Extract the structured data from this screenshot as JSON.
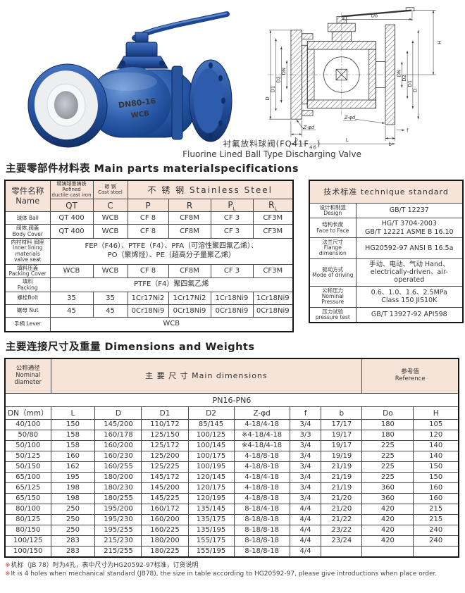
{
  "figure": {
    "caption_cn_main": "衬氟放料球阀(FQ41F",
    "caption_cn_sub": "46",
    "caption_cn_close": ")",
    "caption_en": "Fluorine Lined Ball Type Discharging Valve",
    "photo_mark_line1": "DN80-16",
    "photo_mark_line2": "WCB"
  },
  "drawing": {
    "dims": {
      "do": "Do",
      "h": "H",
      "d": "D",
      "d1": "D1",
      "d2": "D2",
      "dn": "DN",
      "z_phi_d": "Z-φd",
      "b": "b",
      "f": "f",
      "l": "L"
    }
  },
  "materials": {
    "heading": "主要零部件材料表 Main parts materialspecifications",
    "name_header": [
      "零件名称",
      "Name"
    ],
    "qt_header": [
      "精铸球墨铸铁",
      "Refined",
      "ductile cast iron"
    ],
    "c_header": [
      "碳  钢",
      "Cast steel"
    ],
    "ss_header": "不 锈 钢 Stainless Steel",
    "codes": [
      {
        "t": "QT"
      },
      {
        "t": "C"
      },
      {
        "t": "P"
      },
      {
        "t": "R"
      },
      {
        "t": "P",
        "sub": "L"
      },
      {
        "t": "R",
        "sub": "L"
      }
    ],
    "rows": [
      {
        "name": [
          "球体 Ball"
        ],
        "values": [
          "QT 400",
          "WCB",
          "CF 8",
          "CF8M",
          "CF 3",
          "CF3M"
        ]
      },
      {
        "name": [
          "阀体,阀盖",
          "Body Cover"
        ],
        "values": [
          "QT 400",
          "WCB",
          "CF 8",
          "CF8M",
          "CF 3",
          "CF3M"
        ]
      },
      {
        "name": [
          "内衬材料 阀座",
          "inner lining",
          "materials",
          "valve seat"
        ],
        "span_value": [
          "FEP（F46）、PTFE（F4）、PFA（可溶性聚四氟乙烯）、",
          "PO（聚烯烃）、PE（超高分子量聚乙烯）"
        ]
      },
      {
        "name": [
          "填料压盖",
          "Packing Cover"
        ],
        "values": [
          "WCB",
          "WCB",
          "CF 8",
          "CF8M",
          "CF 3",
          "CF3M"
        ]
      },
      {
        "name": [
          "填料",
          "Packing"
        ],
        "span_value": [
          "PTFE（F4）聚四氟乙烯"
        ]
      },
      {
        "name": [
          "螺栓Bolt"
        ],
        "values": [
          "35",
          "35",
          "1Cr17Ni2",
          "1Cr17Ni2",
          "1Cr18Ni9",
          "1Cr18Ni9"
        ]
      },
      {
        "name": [
          "螺母 Nut"
        ],
        "values": [
          "45",
          "45",
          "0Cr18Ni9",
          "0Cr18Ni9",
          "0Cr18Ni9",
          "0Cr18Ni9"
        ]
      },
      {
        "name": [
          "手柄 Lever"
        ],
        "span_value": [
          "WCB"
        ]
      }
    ]
  },
  "standards": {
    "title": "技术标准 technique standard",
    "rows": [
      {
        "label": [
          "设计和制造",
          "Design"
        ],
        "value": [
          "GB/T 12237"
        ]
      },
      {
        "label": [
          "结构长度",
          "Face to Face"
        ],
        "value": [
          "HG/T 3704-2003",
          "GB/T 12221  ASME B 16.10"
        ]
      },
      {
        "label": [
          "法兰尺寸",
          "Flange",
          "dimension"
        ],
        "value": [
          "HG20592-97 ANSI B 16.5a"
        ]
      },
      {
        "label": [
          "驱动方式",
          "Mode of driving"
        ],
        "value": [
          "手动、电动、气动 Hand、",
          "electrically-driven、air-operated"
        ]
      },
      {
        "label": [
          "公称压力",
          "Nominal",
          "Pressure"
        ],
        "value": [
          "0.6、1.0、1.6、2.5MPa",
          "Class 150 JIS10K"
        ]
      },
      {
        "label": [
          "压力试验",
          "pressure test"
        ],
        "value": [
          "GB/T 13927-92  API598"
        ]
      }
    ]
  },
  "dimensions": {
    "heading": "主要连接尺寸及重量 Dimensions and Weights",
    "nominal_header": [
      "公称通径",
      "Nominal",
      "diameter"
    ],
    "main_header": "主 要 尺 寸 Main dimensions",
    "reference_header": [
      "参考值",
      "Reference"
    ],
    "series_label": "PN16-PN6",
    "columns": [
      "DN（mm）",
      "L",
      "D",
      "D1",
      "D2",
      "Z-φd",
      "f",
      "b",
      "Do",
      "H"
    ],
    "rows": [
      [
        "40/100",
        "150",
        "145/200",
        "110/172",
        "85/145",
        "4-18/4-18",
        "3/4",
        "17/17",
        "180",
        "105"
      ],
      [
        "50/80",
        "158",
        "160/178",
        "125/150",
        "100/125",
        "※4-18/4-18",
        "3/3",
        "19/17",
        "180",
        "120"
      ],
      [
        "50/100",
        "158",
        "160/200",
        "125/172",
        "100/145",
        "※4-18/4-18",
        "3/4",
        "19/17",
        "225",
        "140"
      ],
      [
        "50/125",
        "160",
        "160/230",
        "125/200",
        "100/175",
        "4-18/8-18",
        "3/4",
        "19/19",
        "225",
        "140"
      ],
      [
        "50/150",
        "162",
        "160/255",
        "125/225",
        "100/195",
        "4-18/8-18",
        "3/4",
        "21/19",
        "225",
        "150"
      ],
      [
        "65/100",
        "195",
        "180/200",
        "145/172",
        "120/145",
        "4-18/4-18",
        "3/4",
        "21/19",
        "225",
        "150"
      ],
      [
        "65/125",
        "198",
        "180/230",
        "145/200",
        "120/175",
        "4-18/8-18",
        "3/4",
        "21/19",
        "360",
        "160"
      ],
      [
        "65/150",
        "198",
        "180/255",
        "145/225",
        "120/195",
        "4-18/8-18",
        "3/4",
        "21/20",
        "360",
        "160"
      ],
      [
        "80/100",
        "250",
        "195/200",
        "160/172",
        "135/145",
        "8-18/4-18",
        "4/4",
        "21/20",
        "420",
        "215"
      ],
      [
        "80/125",
        "250",
        "195/230",
        "160/200",
        "135/175",
        "8-18/8-18",
        "4/4",
        "21/22",
        "420",
        "215"
      ],
      [
        "80/150",
        "250",
        "195/255",
        "160/225",
        "135/195",
        "8-18/8-18",
        "4/4",
        "23/22",
        "420",
        "240"
      ],
      [
        "100/125",
        "283",
        "215/230",
        "180/200",
        "155/175",
        "8-18/8-18",
        "4/4",
        "23/24",
        "420",
        "240"
      ],
      [
        "100/150",
        "283",
        "215/255",
        "180/225",
        "155/195",
        "8-18/8-18",
        "4/4",
        "",
        "",
        ""
      ]
    ]
  },
  "footnotes": {
    "marker": "※",
    "cn": "机标（JB 78）时为4孔，表中尺寸为HG20592-97标准，订货说明",
    "en": "It is 4 holes when mechanical standard (JB78), the size in table according to HG20592-97, please give introductions when place order."
  }
}
